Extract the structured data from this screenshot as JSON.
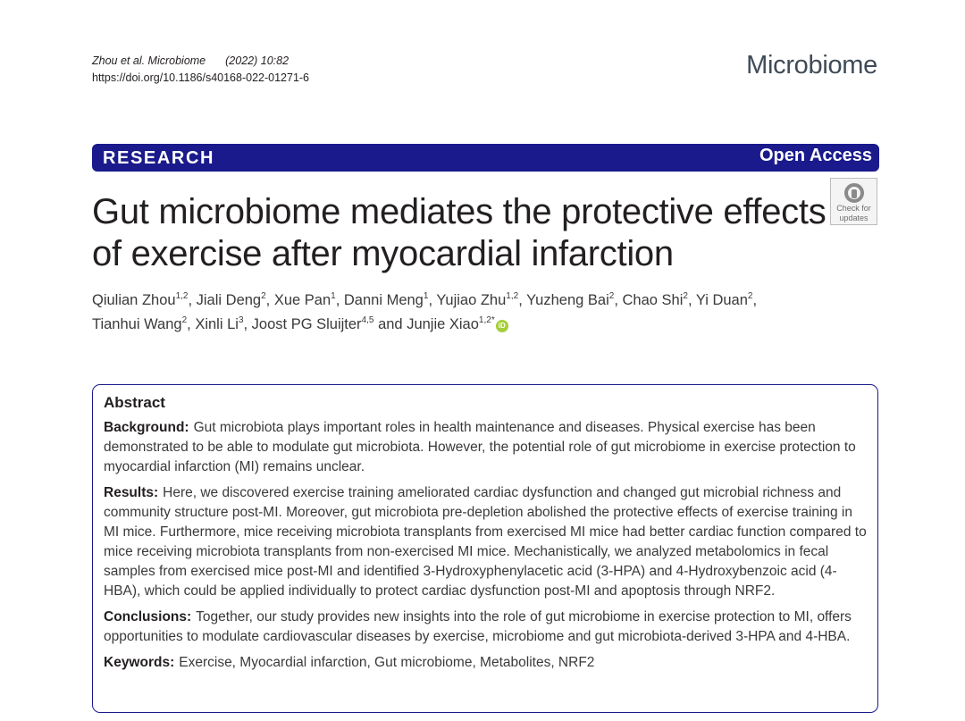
{
  "header": {
    "citation_journal": "Zhou et al. Microbiome",
    "citation_year": "(2022) 10:82",
    "doi": "https://doi.org/10.1186/s40168-022-01271-6",
    "journal_name": "Microbiome"
  },
  "banner": {
    "type": "RESEARCH",
    "access": "Open Access"
  },
  "check_badge": {
    "text_1": "Check for",
    "text_2": "updates"
  },
  "title": "Gut microbiome mediates the protective effects of exercise after myocardial infarction",
  "authors": [
    {
      "name": "Qiulian Zhou",
      "aff": "1,2"
    },
    {
      "name": "Jiali Deng",
      "aff": "2"
    },
    {
      "name": "Xue Pan",
      "aff": "1"
    },
    {
      "name": "Danni Meng",
      "aff": "1"
    },
    {
      "name": "Yujiao Zhu",
      "aff": "1,2"
    },
    {
      "name": "Yuzheng Bai",
      "aff": "2"
    },
    {
      "name": "Chao Shi",
      "aff": "2"
    },
    {
      "name": "Yi Duan",
      "aff": "2"
    },
    {
      "name": "Tianhui Wang",
      "aff": "2"
    },
    {
      "name": "Xinli Li",
      "aff": "3"
    },
    {
      "name": "Joost PG Sluijter",
      "aff": "4,5"
    },
    {
      "name": "Junjie Xiao",
      "aff": "1,2*"
    }
  ],
  "authors_and": "and",
  "abstract": {
    "heading": "Abstract",
    "background_label": "Background:",
    "background": "Gut microbiota plays important roles in health maintenance and diseases. Physical exercise has been demonstrated to be able to modulate gut microbiota. However, the potential role of gut microbiome in exercise protection to myocardial infarction (MI) remains unclear.",
    "results_label": "Results:",
    "results": "Here, we discovered exercise training ameliorated cardiac dysfunction and changed gut microbial richness and community structure post-MI. Moreover, gut microbiota pre-depletion abolished the protective effects of exercise training in MI mice. Furthermore, mice receiving microbiota transplants from exercised MI mice had better cardiac function compared to mice receiving microbiota transplants from non-exercised MI mice. Mechanistically, we analyzed metabolomics in fecal samples from exercised mice post-MI and identified 3-Hydroxyphenylacetic acid (3-HPA) and 4-Hydroxybenzoic acid (4-HBA), which could be applied individually to protect cardiac dysfunction post-MI and apoptosis through NRF2.",
    "conclusions_label": "Conclusions:",
    "conclusions": "Together, our study provides new insights into the role of gut microbiome in exercise protection to MI, offers opportunities to modulate cardiovascular diseases by exercise, microbiome and gut microbiota-derived 3-HPA and 4-HBA.",
    "keywords_label": "Keywords:",
    "keywords": "Exercise, Myocardial infarction, Gut microbiome, Metabolites, NRF2"
  }
}
